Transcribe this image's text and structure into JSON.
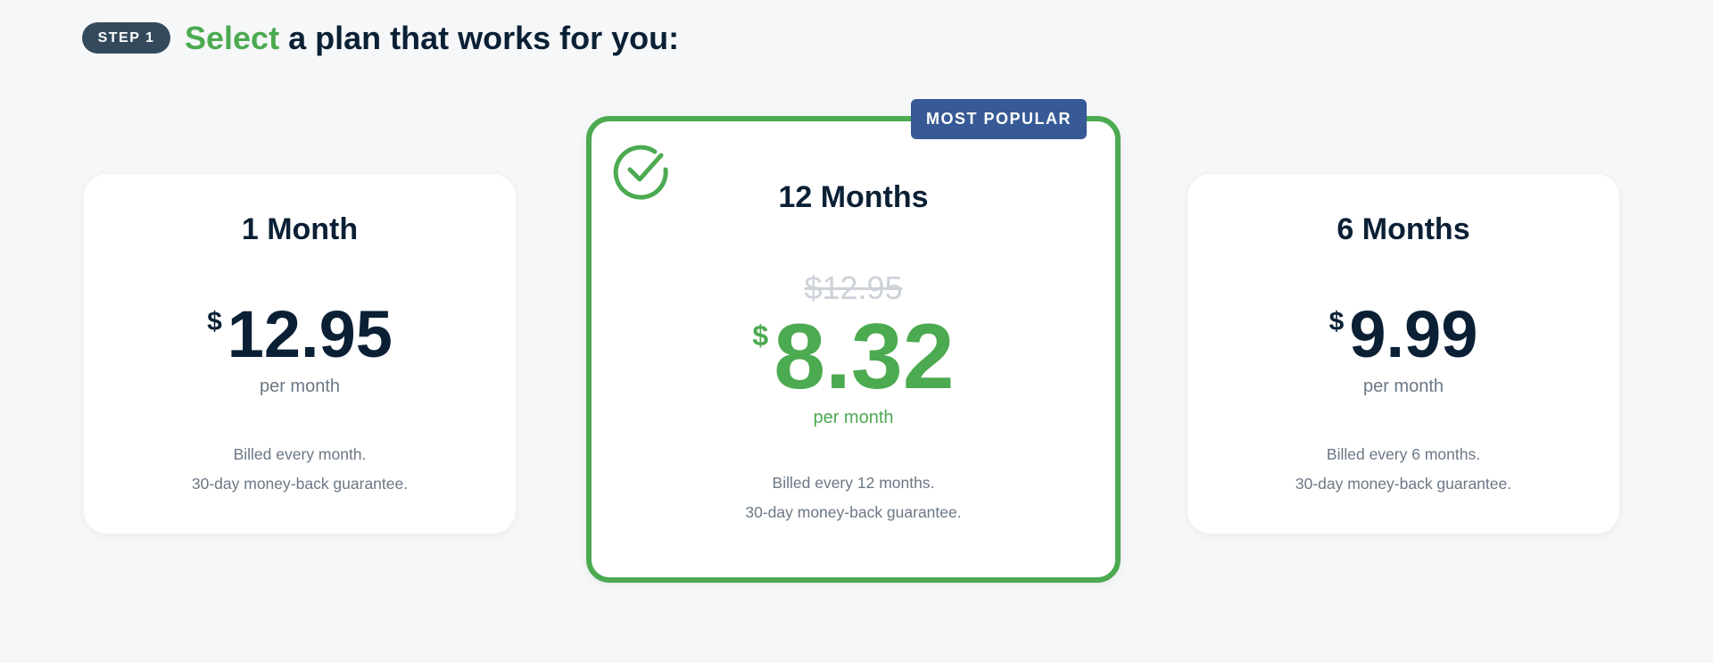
{
  "header": {
    "step_label": "STEP 1",
    "title_highlight": "Select",
    "title_rest": " a plan that works for you:"
  },
  "plans": [
    {
      "title": "1 Month",
      "currency": "$",
      "price": "12.95",
      "per": "per month",
      "billing": "Billed every month.",
      "guarantee": "30-day money-back guarantee."
    },
    {
      "title": "12 Months",
      "badge": "MOST POPULAR",
      "original_price": "$12.95",
      "currency": "$",
      "price": "8.32",
      "per": "per month",
      "billing": "Billed every 12 months.",
      "guarantee": "30-day money-back guarantee.",
      "selected": true,
      "icon": "check-circle-icon"
    },
    {
      "title": "6 Months",
      "currency": "$",
      "price": "9.99",
      "per": "per month",
      "billing": "Billed every 6 months.",
      "guarantee": "30-day money-back guarantee."
    }
  ],
  "colors": {
    "accent": "#4caa50",
    "badge": "#375a96",
    "step": "#344a5c",
    "text": "#0b2035"
  }
}
